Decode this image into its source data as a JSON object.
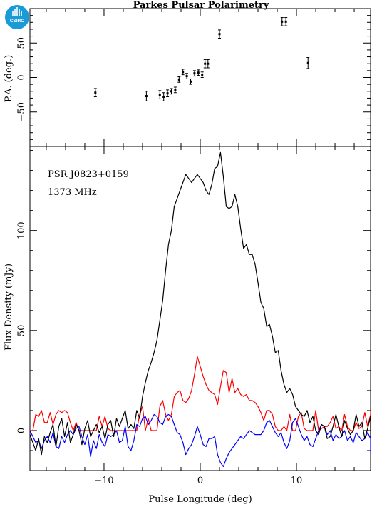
{
  "title": "Parkes Pulsar Polarimetry",
  "logo_text": "CSIRO",
  "colors": {
    "total": "#000000",
    "linear": "#ff0000",
    "circular": "#0000ff",
    "logo": "#1a9ad6"
  },
  "chart_data": [
    {
      "type": "scatter",
      "ylabel": "P.A. (deg.)",
      "xlim": [
        -17.7,
        17.7
      ],
      "ylim": [
        -100,
        100
      ],
      "yticks": [
        -50,
        0,
        50
      ],
      "ytick_labels": [
        "−50",
        "0",
        "50"
      ],
      "points": [
        {
          "x": -10.9,
          "y": -22,
          "err": 6
        },
        {
          "x": -5.6,
          "y": -27,
          "err": 7
        },
        {
          "x": -4.2,
          "y": -25,
          "err": 6
        },
        {
          "x": -3.8,
          "y": -28,
          "err": 6
        },
        {
          "x": -3.4,
          "y": -23,
          "err": 5
        },
        {
          "x": -3.0,
          "y": -20,
          "err": 4
        },
        {
          "x": -2.6,
          "y": -18,
          "err": 4
        },
        {
          "x": -2.2,
          "y": -3,
          "err": 4
        },
        {
          "x": -1.8,
          "y": 8,
          "err": 4
        },
        {
          "x": -1.4,
          "y": 2,
          "err": 4
        },
        {
          "x": -1.0,
          "y": -6,
          "err": 4
        },
        {
          "x": -0.6,
          "y": 6,
          "err": 4
        },
        {
          "x": -0.2,
          "y": 7,
          "err": 4
        },
        {
          "x": 0.2,
          "y": 4,
          "err": 4
        },
        {
          "x": 0.5,
          "y": 20,
          "err": 6
        },
        {
          "x": 0.8,
          "y": 20,
          "err": 6
        },
        {
          "x": 2.0,
          "y": 63,
          "err": 6
        },
        {
          "x": 8.5,
          "y": 81,
          "err": 6
        },
        {
          "x": 8.9,
          "y": 81,
          "err": 6
        },
        {
          "x": 11.2,
          "y": 21,
          "err": 8
        }
      ]
    },
    {
      "type": "line",
      "xlabel": "Pulse Longitude (deg)",
      "ylabel": "Flux Density (mJy)",
      "annotations": [
        "PSR J0823+0159",
        "1373 MHz"
      ],
      "xlim": [
        -17.7,
        17.7
      ],
      "ylim": [
        -20,
        142
      ],
      "xticks": [
        -10,
        0,
        10
      ],
      "xtick_labels": [
        "−10",
        "0",
        "10"
      ],
      "yticks": [
        0,
        50,
        100
      ],
      "ytick_labels": [
        "0",
        "50",
        "100"
      ],
      "x_start": -17.7,
      "x_step": 0.3,
      "series": [
        {
          "values": [
            -2,
            -6,
            -10,
            -4,
            -12,
            -3,
            -6,
            -1,
            3,
            -8,
            2,
            6,
            -3,
            4,
            -6,
            -2,
            3,
            0,
            -7,
            1,
            5,
            -3,
            0,
            3,
            -1,
            2,
            -4,
            3,
            5,
            -3,
            6,
            2,
            6,
            10,
            1,
            3,
            1,
            10,
            6,
            17,
            24,
            30,
            34,
            39,
            45,
            55,
            65,
            80,
            93,
            100,
            112,
            116,
            120,
            124,
            128,
            126,
            124,
            126,
            128,
            126,
            124,
            120,
            118,
            123,
            131,
            132,
            139,
            127,
            112,
            111,
            112,
            118,
            112,
            101,
            91,
            93,
            88,
            88,
            83,
            74,
            64,
            61,
            52,
            53,
            47,
            39,
            40,
            30,
            23,
            19,
            21,
            18,
            12,
            10,
            8,
            7,
            10,
            4,
            7,
            0,
            -2,
            3,
            2,
            -4,
            -3,
            2,
            8,
            2,
            -3,
            5,
            1,
            -2,
            0,
            8,
            2,
            4,
            -4,
            1,
            7,
            4,
            -3,
            0,
            -1
          ]
        },
        {
          "values": [
            0,
            0,
            8,
            7,
            10,
            4,
            4,
            9,
            3,
            8,
            10,
            9,
            10,
            9,
            4,
            0,
            4,
            0,
            0,
            0,
            0,
            0,
            0,
            0,
            7,
            2,
            7,
            1,
            0,
            0,
            0,
            0,
            0,
            0,
            0,
            0,
            0,
            0,
            8,
            12,
            0,
            6,
            0,
            0,
            0,
            12,
            15,
            8,
            5,
            8,
            17,
            19,
            20,
            15,
            14,
            16,
            20,
            28,
            37,
            32,
            27,
            23,
            20,
            19,
            18,
            13,
            22,
            30,
            29,
            19,
            26,
            19,
            21,
            18,
            17,
            18,
            15,
            15,
            14,
            12,
            9,
            5,
            10,
            10,
            8,
            2,
            0,
            0,
            2,
            0,
            8,
            0,
            0,
            7,
            9,
            1,
            0,
            0,
            0,
            10,
            0,
            1,
            2,
            2,
            4,
            7,
            1,
            2,
            0,
            8,
            2,
            0,
            0,
            4,
            1,
            2,
            9,
            2,
            8,
            0,
            0,
            10
          ]
        },
        {
          "values": [
            0,
            -3,
            -6,
            -5,
            -9,
            -5,
            -3,
            -6,
            -1,
            -8,
            -9,
            -3,
            -6,
            -2,
            0,
            -2,
            1,
            2,
            -3,
            -7,
            -2,
            -13,
            -5,
            -9,
            -2,
            -6,
            -8,
            -2,
            -3,
            -2,
            0,
            -6,
            -5,
            2,
            -8,
            -10,
            -5,
            3,
            2,
            6,
            7,
            3,
            5,
            8,
            7,
            4,
            3,
            7,
            8,
            7,
            3,
            -1,
            -2,
            -6,
            -12,
            -9,
            -7,
            -3,
            2,
            -2,
            -7,
            -8,
            -4,
            -4,
            -3,
            -12,
            -16,
            -18,
            -14,
            -11,
            -9,
            -7,
            -5,
            -3,
            -4,
            -2,
            0,
            -1,
            -2,
            -2,
            -2,
            0,
            4,
            5,
            2,
            -1,
            -3,
            -1,
            -6,
            -9,
            -5,
            4,
            6,
            2,
            -2,
            -5,
            -3,
            -7,
            -8,
            -4,
            0,
            3,
            2,
            -2,
            0,
            -5,
            -2,
            -4,
            -3,
            0,
            -5,
            -3,
            -6,
            -1,
            -3,
            -5,
            -4,
            -1,
            -4,
            -5,
            -7,
            -6,
            -11
          ]
        }
      ]
    }
  ]
}
